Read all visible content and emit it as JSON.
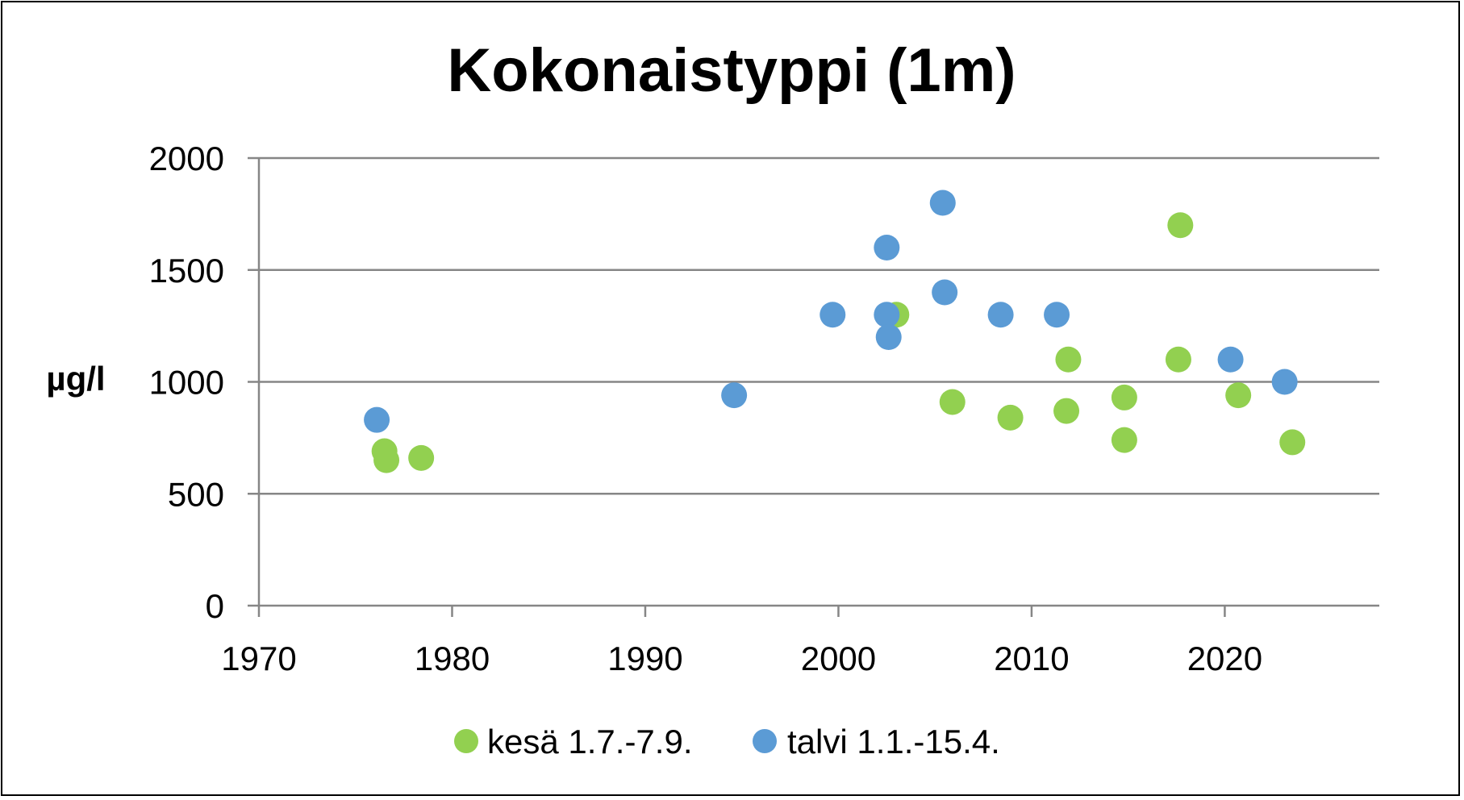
{
  "chart_data": {
    "type": "scatter",
    "title": "Kokonaistyppi (1m)",
    "xlabel": "",
    "ylabel": "µg/l",
    "xlim": [
      1970,
      2028
    ],
    "ylim": [
      0,
      2000
    ],
    "x_ticks": [
      1970,
      1980,
      1990,
      2000,
      2010,
      2020
    ],
    "y_ticks": [
      0,
      500,
      1000,
      1500,
      2000
    ],
    "grid": "horizontal",
    "legend_position": "bottom",
    "colors": {
      "kesa": "#92d050",
      "talvi": "#5b9bd5",
      "grid": "#868686",
      "axis": "#868686"
    },
    "series": [
      {
        "name": "kesä 1.7.-7.9.",
        "color": "#92d050",
        "points": [
          [
            1976.5,
            690
          ],
          [
            1976.6,
            650
          ],
          [
            1978.4,
            660
          ],
          [
            2003.0,
            1300
          ],
          [
            2005.9,
            910
          ],
          [
            2008.9,
            840
          ],
          [
            2011.9,
            1100
          ],
          [
            2011.8,
            870
          ],
          [
            2014.8,
            930
          ],
          [
            2014.8,
            740
          ],
          [
            2017.7,
            1700
          ],
          [
            2017.6,
            1100
          ],
          [
            2020.7,
            940
          ],
          [
            2023.5,
            730
          ]
        ]
      },
      {
        "name": "talvi 1.1.-15.4.",
        "color": "#5b9bd5",
        "points": [
          [
            1976.1,
            830
          ],
          [
            1994.6,
            940
          ],
          [
            1999.7,
            1300
          ],
          [
            2002.5,
            1600
          ],
          [
            2002.5,
            1300
          ],
          [
            2002.6,
            1200
          ],
          [
            2005.4,
            1800
          ],
          [
            2005.5,
            1400
          ],
          [
            2008.4,
            1300
          ],
          [
            2011.3,
            1300
          ],
          [
            2020.3,
            1100
          ],
          [
            2023.1,
            1000
          ]
        ]
      }
    ]
  }
}
